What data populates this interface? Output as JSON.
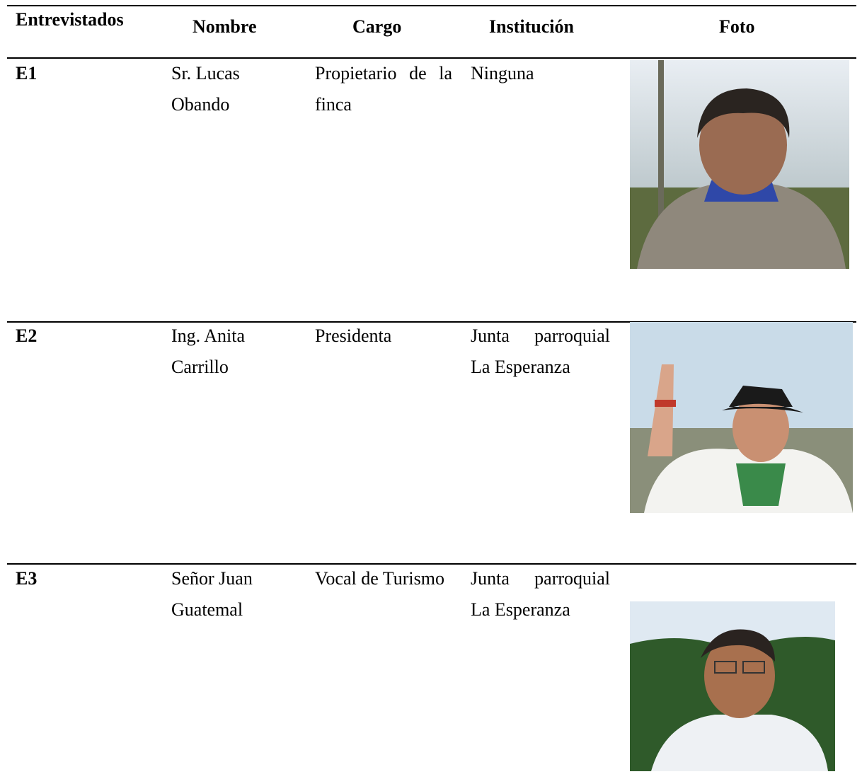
{
  "table": {
    "headers": [
      "Entrevistados",
      "Nombre",
      "Cargo",
      "Institución",
      "Foto"
    ],
    "rows": [
      [
        "E1",
        "Sr. Lucas Obando",
        "Propietario de la finca",
        "Ninguna"
      ],
      [
        "E2",
        "Ing. Anita Carrillo",
        "Presidenta",
        "Junta parroquial La Esperanza"
      ],
      [
        "E3",
        "Señor Juan Guatemal",
        "Vocal de Turismo",
        "Junta parroquial La Esperanza"
      ]
    ]
  }
}
